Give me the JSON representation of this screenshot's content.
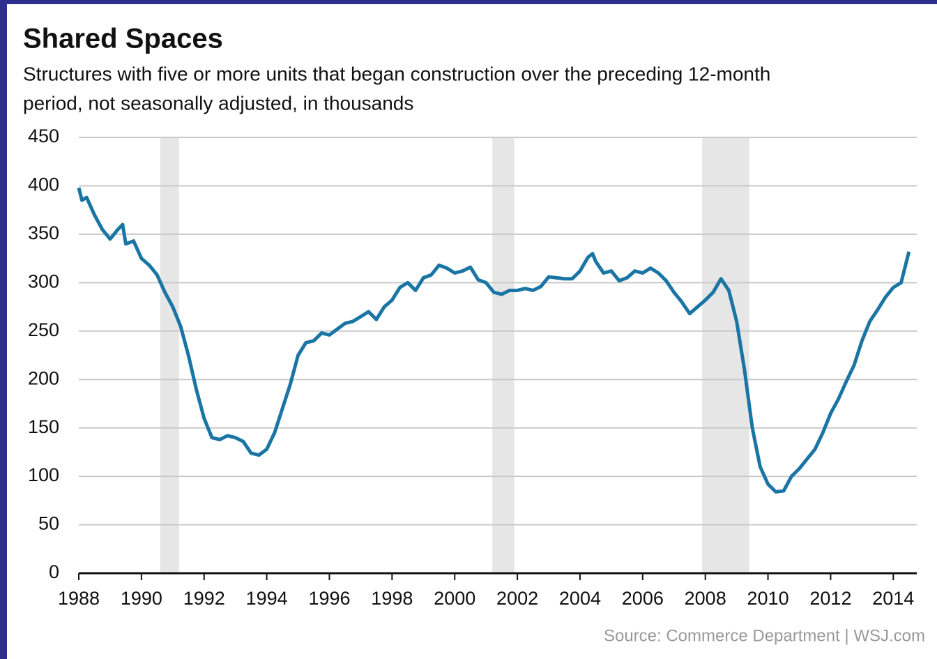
{
  "chart_data": {
    "type": "line",
    "title": "Shared Spaces",
    "subtitle": [
      "Structures with five or more units that began construction over the preceding 12-month",
      "period, not seasonally adjusted, in thousands"
    ],
    "source": "Source: Commerce Department  |  WSJ.com",
    "x": [
      1988.0,
      1988.1,
      1988.25,
      1988.5,
      1988.75,
      1989.0,
      1989.25,
      1989.4,
      1989.5,
      1989.75,
      1990.0,
      1990.25,
      1990.5,
      1990.75,
      1991.0,
      1991.25,
      1991.5,
      1991.75,
      1992.0,
      1992.25,
      1992.5,
      1992.75,
      1993.0,
      1993.25,
      1993.5,
      1993.75,
      1994.0,
      1994.25,
      1994.5,
      1994.75,
      1995.0,
      1995.25,
      1995.5,
      1995.75,
      1996.0,
      1996.25,
      1996.5,
      1996.75,
      1997.0,
      1997.25,
      1997.5,
      1997.75,
      1998.0,
      1998.25,
      1998.5,
      1998.75,
      1999.0,
      1999.25,
      1999.5,
      1999.75,
      2000.0,
      2000.25,
      2000.5,
      2000.75,
      2001.0,
      2001.25,
      2001.5,
      2001.75,
      2002.0,
      2002.25,
      2002.5,
      2002.75,
      2003.0,
      2003.25,
      2003.5,
      2003.75,
      2004.0,
      2004.25,
      2004.4,
      2004.5,
      2004.75,
      2005.0,
      2005.25,
      2005.5,
      2005.75,
      2006.0,
      2006.25,
      2006.5,
      2006.75,
      2007.0,
      2007.25,
      2007.5,
      2007.75,
      2008.0,
      2008.25,
      2008.5,
      2008.75,
      2009.0,
      2009.25,
      2009.5,
      2009.75,
      2010.0,
      2010.25,
      2010.5,
      2010.75,
      2011.0,
      2011.25,
      2011.5,
      2011.75,
      2012.0,
      2012.25,
      2012.5,
      2012.75,
      2013.0,
      2013.25,
      2013.5,
      2013.75,
      2014.0,
      2014.25,
      2014.5
    ],
    "series": [
      {
        "color": "#1a75a5",
        "values": [
          398,
          385,
          388,
          370,
          355,
          345,
          355,
          360,
          340,
          343,
          325,
          318,
          308,
          290,
          275,
          255,
          225,
          190,
          160,
          140,
          138,
          142,
          140,
          136,
          124,
          122,
          128,
          145,
          170,
          195,
          225,
          238,
          240,
          248,
          246,
          252,
          258,
          260,
          265,
          270,
          262,
          275,
          282,
          295,
          300,
          292,
          305,
          308,
          318,
          315,
          310,
          312,
          316,
          303,
          300,
          290,
          288,
          292,
          292,
          294,
          292,
          296,
          306,
          305,
          304,
          304,
          312,
          326,
          330,
          322,
          310,
          312,
          302,
          305,
          312,
          310,
          315,
          310,
          302,
          290,
          280,
          268,
          275,
          282,
          290,
          304,
          292,
          260,
          210,
          150,
          110,
          92,
          84,
          85,
          100,
          108,
          118,
          128,
          145,
          165,
          180,
          198,
          215,
          240,
          260,
          272,
          285,
          295,
          300,
          332
        ]
      }
    ],
    "recessions": [
      [
        1990.6,
        1991.2
      ],
      [
        2001.2,
        2001.9
      ],
      [
        2007.9,
        2009.4
      ]
    ],
    "recession_color": "#e6e6e6",
    "xlim": [
      1988,
      2014.75
    ],
    "xticks": [
      1988,
      1990,
      1992,
      1994,
      1996,
      1998,
      2000,
      2002,
      2004,
      2006,
      2008,
      2010,
      2012,
      2014
    ],
    "ylim": [
      0,
      450
    ],
    "yticks": [
      0,
      50,
      100,
      150,
      200,
      250,
      300,
      350,
      400,
      450
    ],
    "grid": true
  }
}
